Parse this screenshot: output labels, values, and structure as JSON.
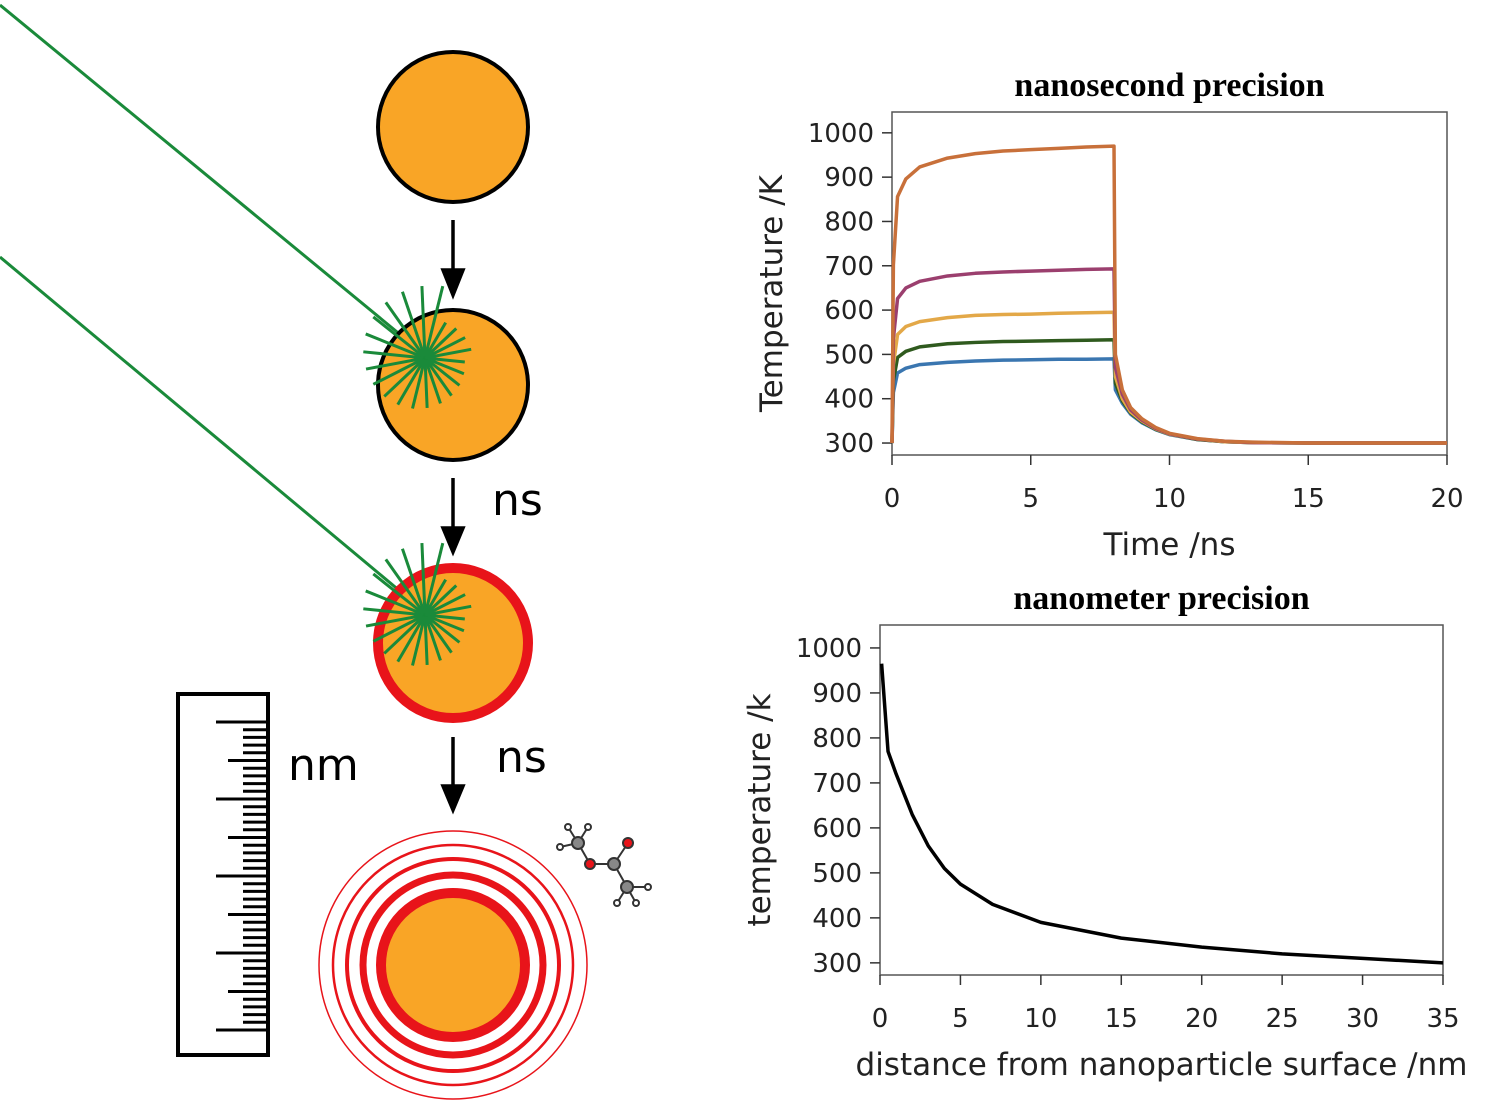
{
  "diagram": {
    "labels": [
      "ns",
      "ns",
      "nm"
    ]
  },
  "chart_data": [
    {
      "type": "line",
      "title": "nanosecond precision",
      "x_label": "Time /ns",
      "y_label": "Temperature /K",
      "x": [
        0,
        0.05,
        0.2,
        0.5,
        1,
        2,
        3,
        4,
        5,
        6,
        7,
        8,
        8.05,
        8.3,
        8.6,
        9,
        9.5,
        10,
        11,
        12,
        13,
        15,
        20
      ],
      "xlim": [
        0,
        20
      ],
      "xticks": [
        0,
        5,
        10,
        15,
        20
      ],
      "ylim": [
        273,
        1047
      ],
      "yticks": [
        300,
        400,
        500,
        600,
        700,
        800,
        900,
        1000
      ],
      "series": [
        {
          "color": "#3a76b0",
          "values": [
            300,
            414,
            458,
            469,
            477,
            482,
            485,
            487,
            488,
            489,
            489,
            490,
            420,
            390,
            365,
            346,
            330,
            319,
            308,
            303,
            301,
            300,
            300
          ]
        },
        {
          "color": "#2f5a1e",
          "values": [
            300,
            440,
            493,
            507,
            517,
            524,
            527,
            529,
            530,
            531,
            532,
            533,
            435,
            395,
            368,
            348,
            331,
            320,
            308,
            303,
            301,
            300,
            300
          ]
        },
        {
          "color": "#e3a848",
          "values": [
            300,
            477,
            545,
            563,
            574,
            583,
            588,
            590,
            591,
            593,
            594,
            595,
            450,
            400,
            370,
            350,
            332,
            320,
            309,
            303,
            301,
            300,
            300
          ]
        },
        {
          "color": "#9b3f6e",
          "values": [
            300,
            536,
            626,
            650,
            665,
            677,
            683,
            686,
            688,
            690,
            692,
            693,
            470,
            410,
            375,
            352,
            333,
            321,
            309,
            304,
            301,
            300,
            300
          ]
        },
        {
          "color": "#c8703a",
          "values": [
            300,
            702,
            856,
            896,
            923,
            943,
            953,
            959,
            962,
            965,
            968,
            970,
            500,
            420,
            380,
            355,
            335,
            322,
            310,
            304,
            302,
            300,
            300
          ]
        }
      ]
    },
    {
      "type": "line",
      "title": "nanometer precision",
      "x_label": "distance from nanoparticle surface /nm",
      "y_label": "temperature /k",
      "x": [
        0.1,
        0.5,
        1,
        2,
        3,
        4,
        5,
        7,
        10,
        15,
        20,
        25,
        30,
        35
      ],
      "xlim": [
        0,
        35
      ],
      "xticks": [
        0,
        5,
        10,
        15,
        20,
        25,
        30,
        35
      ],
      "ylim": [
        273,
        1051
      ],
      "yticks": [
        300,
        400,
        500,
        600,
        700,
        800,
        900,
        1000
      ],
      "series": [
        {
          "color": "#000000",
          "values": [
            965,
            770,
            720,
            630,
            560,
            510,
            475,
            430,
            390,
            355,
            335,
            320,
            310,
            300
          ]
        }
      ]
    }
  ]
}
